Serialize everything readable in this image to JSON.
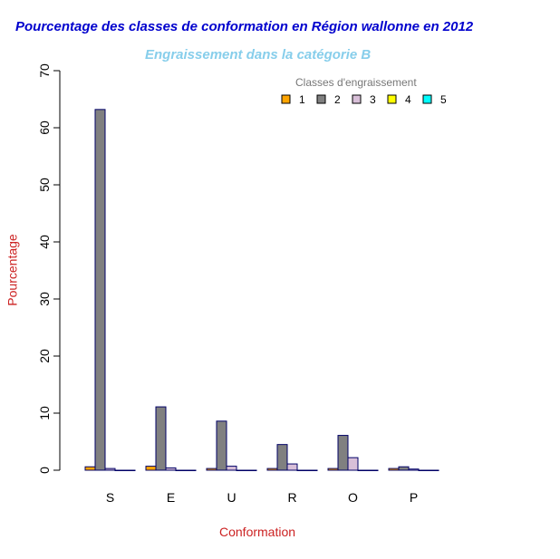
{
  "chart_data": {
    "type": "bar",
    "title": "Pourcentage des classes de conformation en Région wallonne en 2012",
    "subtitle": "Engraissement dans la catégorie B",
    "xlabel": "Conformation",
    "ylabel": "Pourcentage",
    "ylim": [
      0,
      70
    ],
    "yticks": [
      0,
      10,
      20,
      30,
      40,
      50,
      60,
      70
    ],
    "categories": [
      "S",
      "E",
      "U",
      "R",
      "O",
      "P"
    ],
    "legend_title": "Classes d'engraissement",
    "legend_position": "top-right",
    "series": [
      {
        "name": "1",
        "color": "#FFA500",
        "values": [
          0.6,
          0.7,
          0.3,
          0.3,
          0.3,
          0.3
        ]
      },
      {
        "name": "2",
        "color": "#808080",
        "values": [
          63.2,
          11.1,
          8.6,
          4.5,
          6.1,
          0.6
        ]
      },
      {
        "name": "3",
        "color": "#D8BFD8",
        "values": [
          0.3,
          0.4,
          0.7,
          1.1,
          2.2,
          0.2
        ]
      },
      {
        "name": "4",
        "color": "#FFFF00",
        "values": [
          0,
          0,
          0,
          0,
          0,
          0
        ]
      },
      {
        "name": "5",
        "color": "#00FFFF",
        "values": [
          0,
          0,
          0,
          0,
          0,
          0
        ]
      }
    ]
  }
}
